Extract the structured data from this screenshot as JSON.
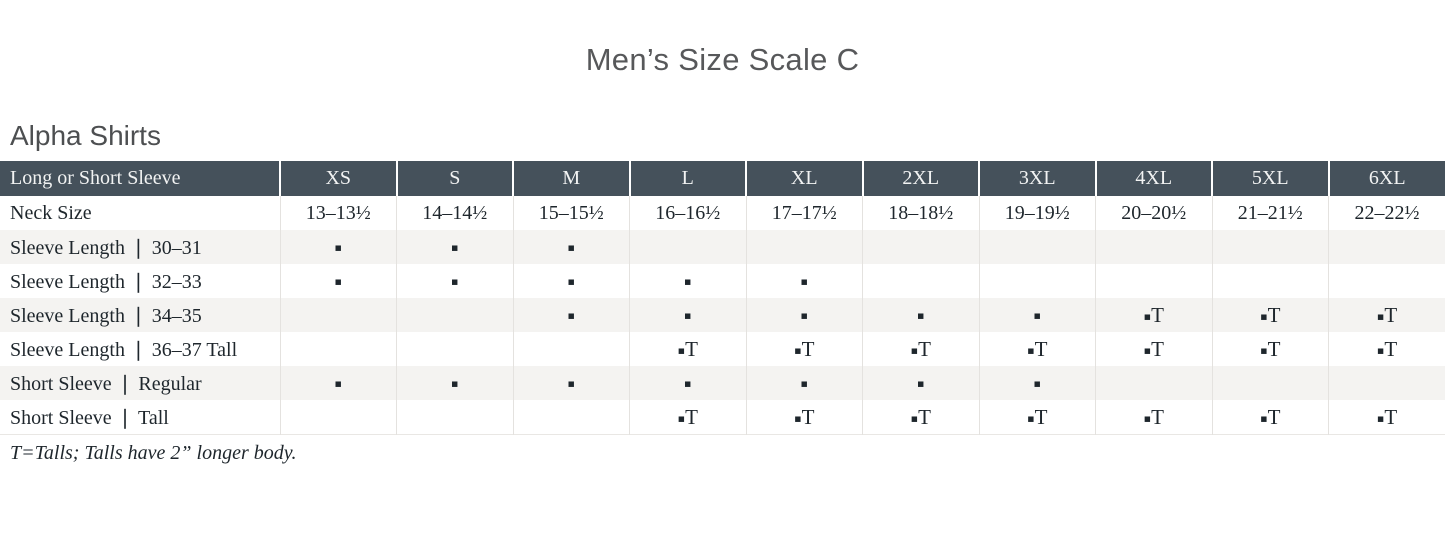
{
  "page": {
    "title": "Men’s Size Scale C",
    "section_heading": "Alpha Shirts",
    "footnote": "T=Talls; Talls have 2” longer body."
  },
  "colors": {
    "header_background": "#45515b",
    "header_text": "#f2f3f3",
    "alternate_row_background": "#f4f3f1",
    "body_text": "#1e262c",
    "title_text": "#57585a"
  },
  "table": {
    "header_label": "Long or Short Sleeve",
    "columns": [
      "XS",
      "S",
      "M",
      "L",
      "XL",
      "2XL",
      "3XL",
      "4XL",
      "5XL",
      "6XL"
    ],
    "markers": {
      "dot": "▪",
      "tall_suffix": "T"
    },
    "rows": [
      {
        "label": "Neck Size",
        "cells": [
          "13–13½",
          "14–14½",
          "15–15½",
          "16–16½",
          "17–17½",
          "18–18½",
          "19–19½",
          "20–20½",
          "21–21½",
          "22–22½"
        ]
      },
      {
        "label": "Sleeve Length ❘ 30–31",
        "cells": [
          "dot",
          "dot",
          "dot",
          "",
          "",
          "",
          "",
          "",
          "",
          ""
        ]
      },
      {
        "label": "Sleeve Length ❘ 32–33",
        "cells": [
          "dot",
          "dot",
          "dot",
          "dot",
          "dot",
          "",
          "",
          "",
          "",
          ""
        ]
      },
      {
        "label": "Sleeve Length ❘ 34–35",
        "cells": [
          "",
          "",
          "dot",
          "dot",
          "dot",
          "dot",
          "dot",
          "tall",
          "tall",
          "tall"
        ]
      },
      {
        "label": "Sleeve Length ❘ 36–37 Tall",
        "cells": [
          "",
          "",
          "",
          "tall",
          "tall",
          "tall",
          "tall",
          "tall",
          "tall",
          "tall"
        ]
      },
      {
        "label": "Short Sleeve ❘ Regular",
        "cells": [
          "dot",
          "dot",
          "dot",
          "dot",
          "dot",
          "dot",
          "dot",
          "",
          "",
          ""
        ]
      },
      {
        "label": "Short Sleeve ❘ Tall",
        "cells": [
          "",
          "",
          "",
          "tall",
          "tall",
          "tall",
          "tall",
          "tall",
          "tall",
          "tall"
        ]
      }
    ]
  }
}
